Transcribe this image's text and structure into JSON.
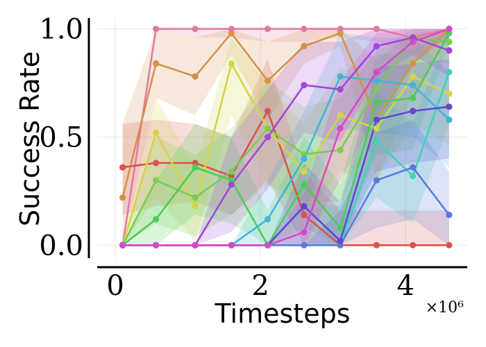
{
  "chart_data": {
    "type": "line",
    "title": "",
    "xlabel": "Timesteps",
    "ylabel": "Success Rate",
    "x_multiplier_label": "×10⁶",
    "xlim": [
      -0.25,
      4.85
    ],
    "ylim": [
      -0.06,
      1.05
    ],
    "x_ticks": [
      0,
      2,
      4
    ],
    "x_tick_labels": [
      "0",
      "2",
      "4"
    ],
    "y_ticks": [
      0.0,
      0.5,
      1.0
    ],
    "y_tick_labels": [
      "0.0",
      "0.5",
      "1.0"
    ],
    "grid": true,
    "legend": "none",
    "x": [
      0.1,
      0.56,
      1.1,
      1.6,
      2.1,
      2.6,
      3.1,
      3.6,
      4.1,
      4.6
    ],
    "series": [
      {
        "color": "#e07ba0",
        "values": [
          0.0,
          1.0,
          1.0,
          1.0,
          1.0,
          1.0,
          1.0,
          1.0,
          0.96,
          1.0
        ],
        "band": [
          [
            0.0,
            0.0
          ],
          [
            1.0,
            1.0
          ],
          [
            0.96,
            1.0
          ],
          [
            0.96,
            1.0
          ],
          [
            0.94,
            1.0
          ],
          [
            0.94,
            1.0
          ],
          [
            0.96,
            1.0
          ],
          [
            0.94,
            1.0
          ],
          [
            0.88,
            1.0
          ],
          [
            0.96,
            1.0
          ]
        ]
      },
      {
        "color": "#d4914a",
        "values": [
          0.22,
          0.84,
          0.78,
          0.98,
          0.76,
          0.92,
          0.98,
          0.58,
          0.84,
          1.0
        ],
        "band": [
          [
            0.0,
            0.56
          ],
          [
            0.68,
            1.0
          ],
          [
            0.6,
            0.96
          ],
          [
            0.88,
            1.0
          ],
          [
            0.58,
            0.94
          ],
          [
            0.84,
            1.0
          ],
          [
            0.92,
            1.0
          ],
          [
            0.3,
            0.86
          ],
          [
            0.7,
            0.98
          ],
          [
            0.96,
            1.0
          ]
        ]
      },
      {
        "color": "#d9534f",
        "values": [
          0.36,
          0.38,
          0.38,
          0.32,
          0.62,
          0.14,
          0.0,
          0.0,
          0.0,
          0.0
        ],
        "band": [
          [
            0.14,
            0.56
          ],
          [
            0.18,
            0.58
          ],
          [
            0.2,
            0.56
          ],
          [
            0.14,
            0.5
          ],
          [
            0.3,
            0.86
          ],
          [
            0.0,
            0.34
          ],
          [
            0.0,
            0.16
          ],
          [
            0.0,
            0.16
          ],
          [
            0.0,
            0.16
          ],
          [
            0.0,
            0.16
          ]
        ]
      },
      {
        "color": "#d4d44a",
        "values": [
          0.0,
          0.52,
          0.18,
          0.84,
          0.54,
          0.34,
          0.6,
          0.54,
          0.78,
          0.7
        ],
        "band": [
          [
            0.0,
            0.0
          ],
          [
            0.22,
            0.68
          ],
          [
            0.02,
            0.36
          ],
          [
            0.6,
            0.96
          ],
          [
            0.28,
            0.74
          ],
          [
            0.14,
            0.56
          ],
          [
            0.34,
            0.82
          ],
          [
            0.3,
            0.76
          ],
          [
            0.56,
            0.94
          ],
          [
            0.46,
            0.9
          ]
        ]
      },
      {
        "color": "#7acc55",
        "values": [
          0.0,
          0.3,
          0.22,
          0.34,
          0.54,
          0.42,
          0.44,
          0.72,
          0.96,
          0.94
        ],
        "band": [
          [
            0.0,
            0.0
          ],
          [
            0.1,
            0.5
          ],
          [
            0.04,
            0.42
          ],
          [
            0.14,
            0.54
          ],
          [
            0.28,
            0.76
          ],
          [
            0.2,
            0.64
          ],
          [
            0.2,
            0.68
          ],
          [
            0.5,
            0.9
          ],
          [
            0.86,
            1.0
          ],
          [
            0.84,
            1.0
          ]
        ]
      },
      {
        "color": "#4ccc55",
        "values": [
          0.0,
          0.12,
          0.36,
          0.3,
          0.0,
          0.28,
          0.08,
          0.66,
          0.68,
          0.98
        ],
        "band": [
          [
            0.0,
            0.0
          ],
          [
            0.0,
            0.3
          ],
          [
            0.14,
            0.56
          ],
          [
            0.1,
            0.5
          ],
          [
            0.0,
            0.16
          ],
          [
            0.08,
            0.5
          ],
          [
            0.0,
            0.28
          ],
          [
            0.42,
            0.88
          ],
          [
            0.44,
            0.9
          ],
          [
            0.94,
            1.0
          ]
        ]
      },
      {
        "color": "#40d4b4",
        "values": [
          0.0,
          0.0,
          0.0,
          0.0,
          0.0,
          0.0,
          0.0,
          0.48,
          0.32,
          0.8
        ],
        "band": [
          [
            0.0,
            0.0
          ],
          [
            0.0,
            0.0
          ],
          [
            0.0,
            0.0
          ],
          [
            0.0,
            0.0
          ],
          [
            0.0,
            0.0
          ],
          [
            0.0,
            0.2
          ],
          [
            0.0,
            0.18
          ],
          [
            0.22,
            0.72
          ],
          [
            0.1,
            0.56
          ],
          [
            0.56,
            1.0
          ]
        ]
      },
      {
        "color": "#44b4dc",
        "values": [
          0.0,
          0.0,
          0.0,
          0.0,
          0.12,
          0.4,
          0.78,
          0.76,
          0.74,
          0.58
        ],
        "band": [
          [
            0.0,
            0.0
          ],
          [
            0.0,
            0.0
          ],
          [
            0.0,
            0.0
          ],
          [
            0.0,
            0.0
          ],
          [
            0.0,
            0.3
          ],
          [
            0.16,
            0.62
          ],
          [
            0.54,
            0.98
          ],
          [
            0.52,
            0.96
          ],
          [
            0.5,
            0.96
          ],
          [
            0.36,
            0.8
          ]
        ]
      },
      {
        "color": "#5b7adc",
        "values": [
          0.0,
          0.0,
          0.0,
          0.0,
          0.0,
          0.0,
          0.0,
          0.3,
          0.36,
          0.14
        ],
        "band": [
          [
            0.0,
            0.0
          ],
          [
            0.0,
            0.0
          ],
          [
            0.0,
            0.0
          ],
          [
            0.0,
            0.0
          ],
          [
            0.0,
            0.0
          ],
          [
            0.0,
            0.0
          ],
          [
            0.0,
            0.16
          ],
          [
            0.08,
            0.52
          ],
          [
            0.12,
            0.58
          ],
          [
            0.0,
            0.34
          ]
        ]
      },
      {
        "color": "#6048d0",
        "values": [
          0.0,
          0.0,
          0.0,
          0.0,
          0.0,
          0.18,
          0.02,
          0.58,
          0.62,
          0.64
        ],
        "band": [
          [
            0.0,
            0.0
          ],
          [
            0.0,
            0.0
          ],
          [
            0.0,
            0.0
          ],
          [
            0.0,
            0.0
          ],
          [
            0.0,
            0.0
          ],
          [
            0.0,
            0.38
          ],
          [
            0.0,
            0.2
          ],
          [
            0.34,
            0.82
          ],
          [
            0.38,
            0.84
          ],
          [
            0.4,
            0.86
          ]
        ]
      },
      {
        "color": "#a048d8",
        "values": [
          0.0,
          0.0,
          0.0,
          0.28,
          0.5,
          0.74,
          0.72,
          0.92,
          0.96,
          0.9
        ],
        "band": [
          [
            0.0,
            0.0
          ],
          [
            0.0,
            0.0
          ],
          [
            0.0,
            0.0
          ],
          [
            0.06,
            0.5
          ],
          [
            0.26,
            0.72
          ],
          [
            0.52,
            0.94
          ],
          [
            0.48,
            0.94
          ],
          [
            0.78,
            1.0
          ],
          [
            0.88,
            1.0
          ],
          [
            0.78,
            1.0
          ]
        ]
      },
      {
        "color": "#d848c8",
        "values": [
          0.0,
          0.0,
          0.0,
          0.0,
          0.0,
          0.06,
          0.54,
          0.8,
          0.94,
          1.0
        ],
        "band": [
          [
            0.0,
            0.0
          ],
          [
            0.0,
            0.0
          ],
          [
            0.0,
            0.0
          ],
          [
            0.0,
            0.0
          ],
          [
            0.0,
            0.0
          ],
          [
            0.0,
            0.24
          ],
          [
            0.3,
            0.76
          ],
          [
            0.6,
            0.98
          ],
          [
            0.84,
            1.0
          ],
          [
            0.96,
            1.0
          ]
        ]
      }
    ]
  }
}
